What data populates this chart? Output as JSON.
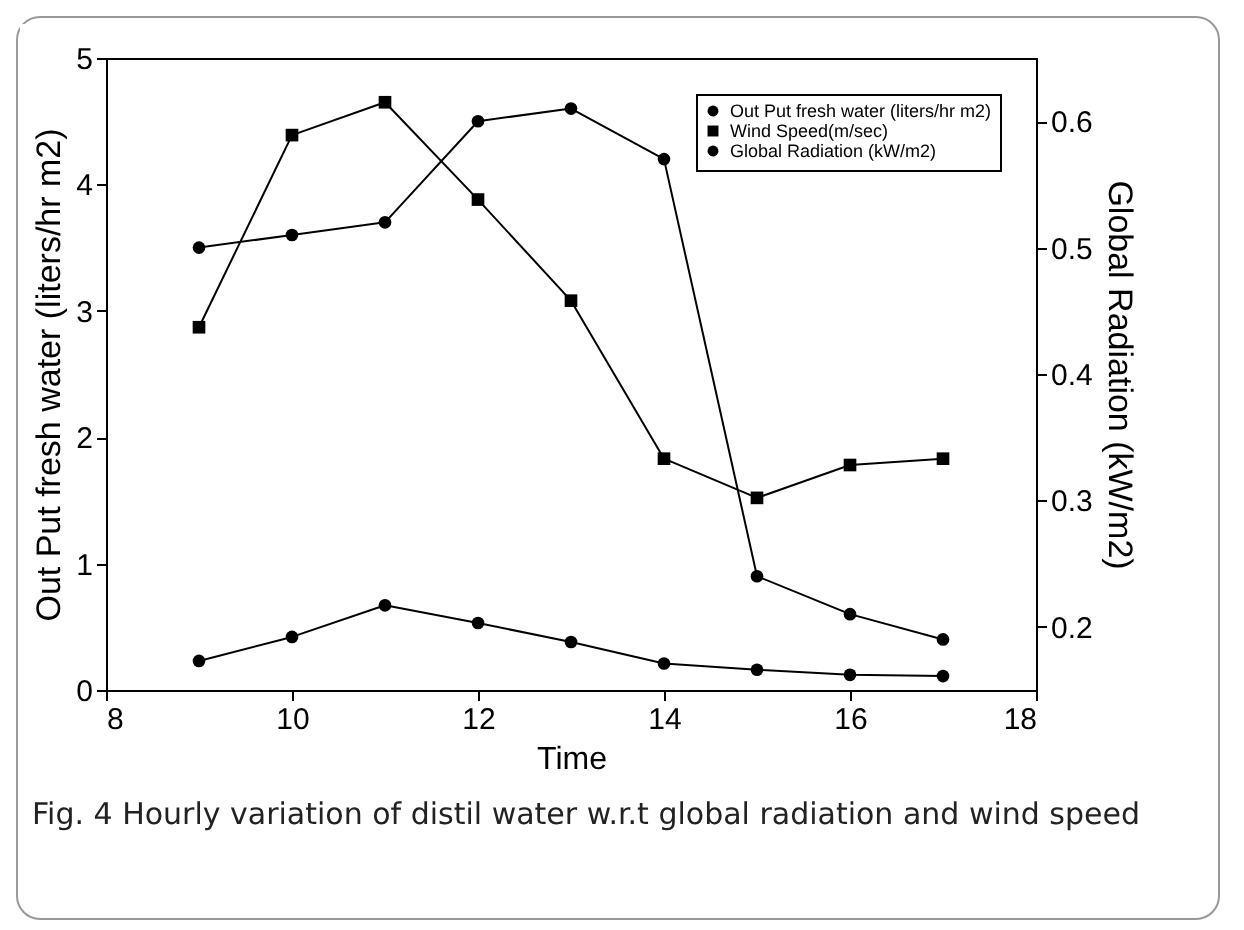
{
  "chart_data": {
    "type": "line",
    "xlabel": "Time",
    "ylabel": "Out Put fresh water (liters/hr m2)",
    "y2label": "Global Radiation (kW/m2)",
    "x": [
      9,
      10,
      11,
      12,
      13,
      14,
      15,
      16,
      17
    ],
    "series": [
      {
        "name": "Out Put fresh water (liters/hr m2)",
        "color": "#000000",
        "marker": "circle",
        "values": [
          0.23,
          0.42,
          0.67,
          0.53,
          0.38,
          0.21,
          0.16,
          0.12,
          0.11
        ]
      },
      {
        "name": "Wind Speed(m/sec)",
        "color": "#000000",
        "marker": "square",
        "values": [
          2.87,
          4.39,
          4.65,
          3.88,
          3.08,
          1.83,
          1.52,
          1.78,
          1.83
        ]
      },
      {
        "name": "Global Radiation (kW/m2)",
        "color": "#000000",
        "marker": "circle",
        "axis": "y2",
        "values": [
          0.5,
          0.51,
          0.52,
          0.6,
          0.61,
          0.57,
          0.24,
          0.21,
          0.19
        ]
      }
    ],
    "xlim": [
      8,
      18
    ],
    "xticks": [
      8,
      10,
      12,
      14,
      16,
      18
    ],
    "ylim": [
      0,
      5
    ],
    "yticks": [
      0,
      1,
      2,
      3,
      4,
      5
    ],
    "y2lim": [
      0.15,
      0.65
    ],
    "y2ticks": [
      0.2,
      0.3,
      0.4,
      0.5,
      0.6
    ],
    "grid": false,
    "legend": "top right",
    "line_style": "solid",
    "annotations": [
      "Fig. 4 Hourly variation of distil water w.r.t global radiation and wind speed"
    ]
  }
}
